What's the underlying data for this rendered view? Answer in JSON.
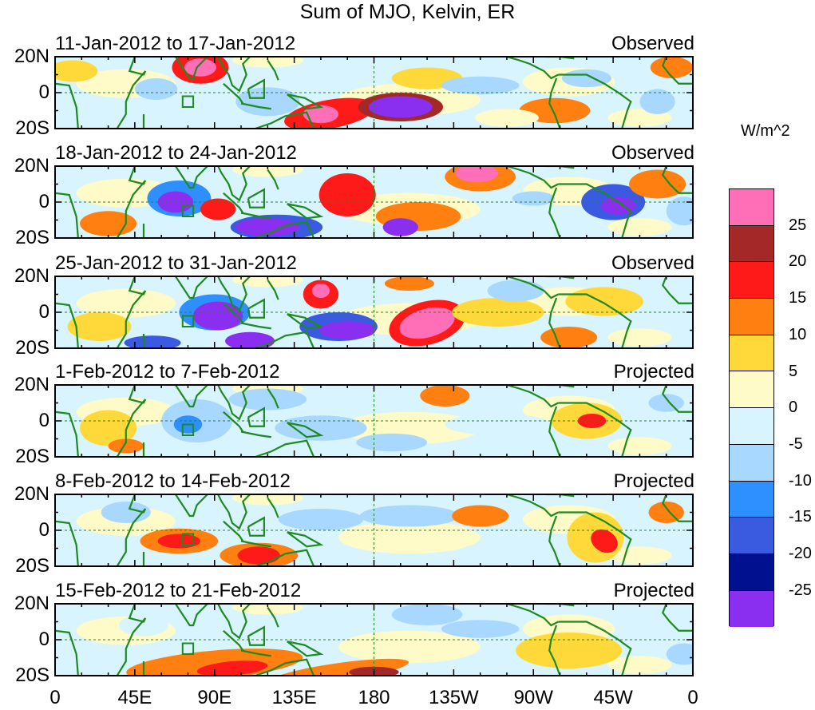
{
  "title": "Sum of MJO, Kelvin, ER",
  "panels": [
    {
      "period": "11-Jan-2012 to 17-Jan-2012",
      "status": "Observed"
    },
    {
      "period": "18-Jan-2012 to 24-Jan-2012",
      "status": "Observed"
    },
    {
      "period": "25-Jan-2012 to 31-Jan-2012",
      "status": "Observed"
    },
    {
      "period": "1-Feb-2012 to 7-Feb-2012",
      "status": "Projected"
    },
    {
      "period": "8-Feb-2012 to 14-Feb-2012",
      "status": "Projected"
    },
    {
      "period": "15-Feb-2012 to 21-Feb-2012",
      "status": "Projected"
    }
  ],
  "lat_labels": [
    "20N",
    "0",
    "20S"
  ],
  "lon_labels": [
    "0",
    "45E",
    "90E",
    "135E",
    "180",
    "135W",
    "90W",
    "45W",
    "0"
  ],
  "colorbar": {
    "units": "W/m^2",
    "levels": [
      25,
      20,
      15,
      10,
      5,
      0,
      -5,
      -10,
      -15,
      -20,
      -25
    ],
    "level_labels": [
      "25",
      "20",
      "15",
      "10",
      "5",
      "0",
      "-5",
      "-10",
      "-15",
      "-20",
      "-25"
    ],
    "colors": [
      "#ff6fb8",
      "#a42828",
      "#ff1a1a",
      "#ff8010",
      "#ffd93a",
      "#fffbc8",
      "#d8f4ff",
      "#a8d8ff",
      "#2e90ff",
      "#3a5ae0",
      "#00108e",
      "#8a2ef0"
    ]
  },
  "map_style": {
    "land_outline": "#1f8a1f",
    "background": "#ffffff",
    "grid_line": "#1f8a1f"
  }
}
